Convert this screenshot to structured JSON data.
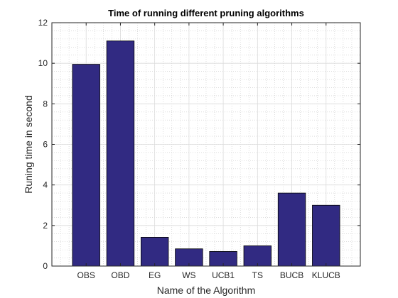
{
  "chart_data": {
    "type": "bar",
    "title": "Time of running different pruning algorithms",
    "xlabel": "Name of the Algorithm",
    "ylabel": "Runing time in second",
    "categories": [
      "OBS",
      "OBD",
      "EG",
      "WS",
      "UCB1",
      "TS",
      "BUCB",
      "KLUCB"
    ],
    "values": [
      9.95,
      11.1,
      1.42,
      0.85,
      0.72,
      1.0,
      3.6,
      3.0
    ],
    "ylim": [
      0,
      12
    ],
    "yticks": [
      "0",
      "2",
      "4",
      "6",
      "8",
      "10",
      "12"
    ],
    "grid": true,
    "minor_grid": true,
    "legend": "none",
    "bar_color": "#312A82",
    "bar_edge_color": "#000000"
  }
}
